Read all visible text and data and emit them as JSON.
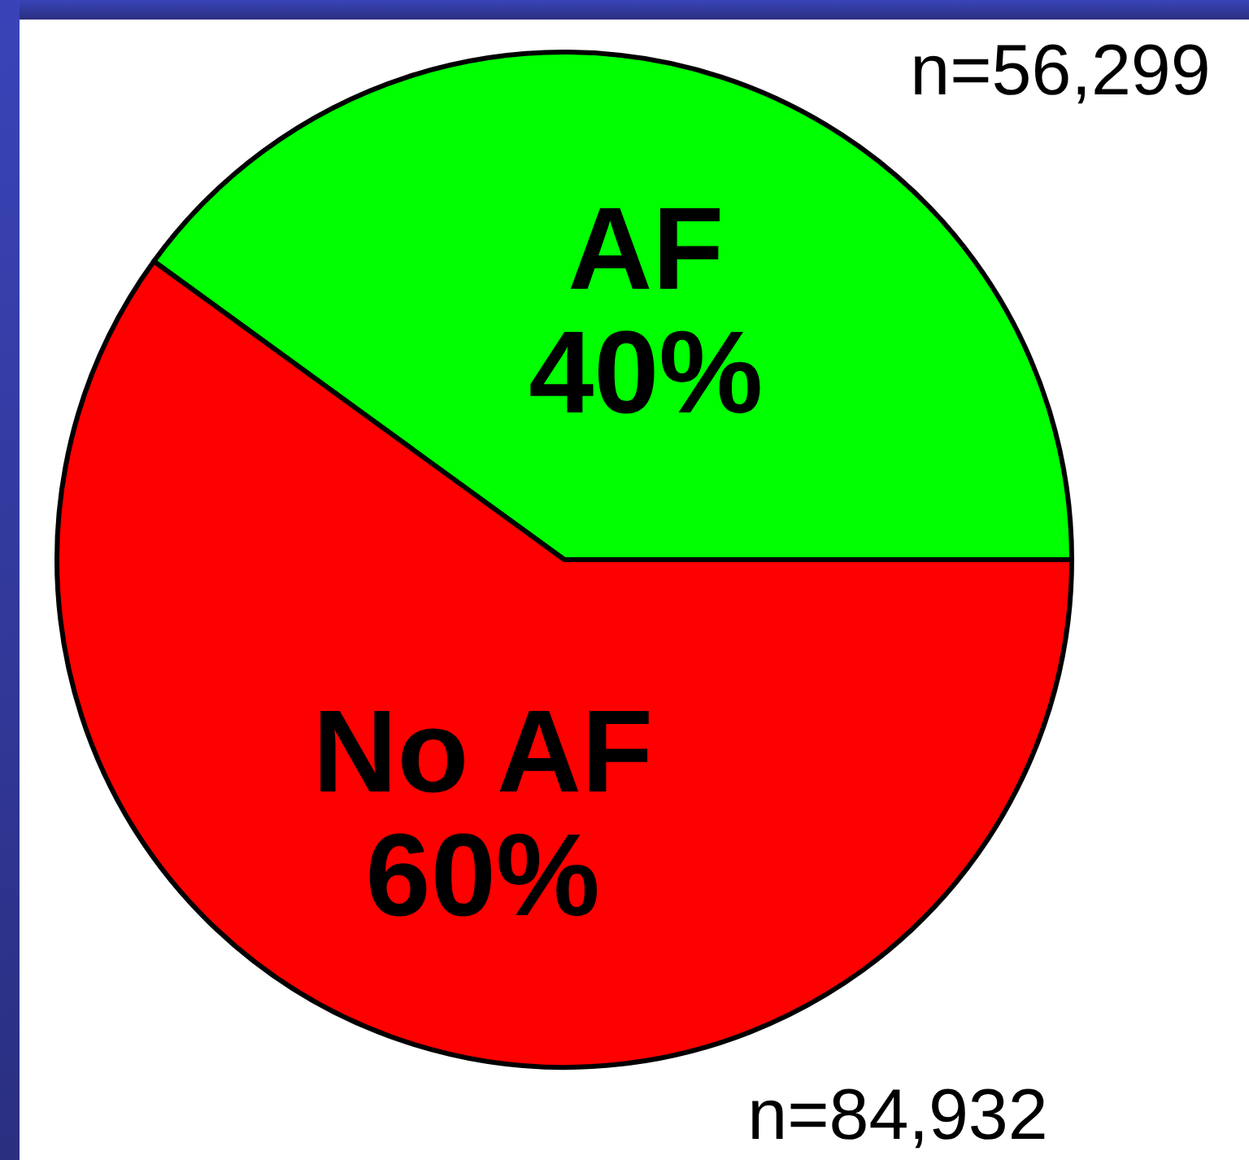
{
  "chart_data": {
    "type": "pie",
    "categories": [
      "AF",
      "No AF"
    ],
    "values": [
      40,
      60
    ],
    "colors": [
      "#00ff00",
      "#ff0000"
    ],
    "value_labels": [
      "40%",
      "60%"
    ],
    "annotations": [
      "n=56,299",
      "n=84,932"
    ]
  }
}
